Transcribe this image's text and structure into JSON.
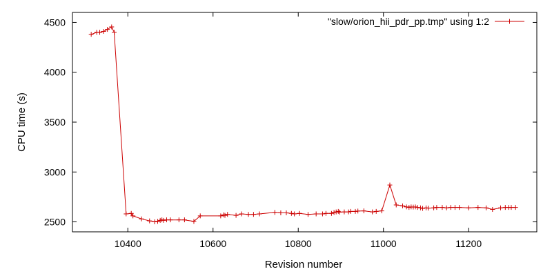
{
  "chart_data": {
    "type": "line",
    "xlabel": "Revision number",
    "ylabel": "CPU time (s)",
    "xlim": [
      10270,
      11360
    ],
    "ylim": [
      2400,
      4600
    ],
    "x_ticks": [
      10400,
      10600,
      10800,
      11000,
      11200
    ],
    "y_ticks": [
      2500,
      3000,
      3500,
      4000,
      4500
    ],
    "grid": false,
    "legend_position": "top-right",
    "series": [
      {
        "name": "\"slow/orion_hii_pdr_pp.tmp\" using 1:2",
        "color": "#cc0000",
        "marker": "plus",
        "points": [
          [
            10314,
            4380
          ],
          [
            10327,
            4400
          ],
          [
            10334,
            4400
          ],
          [
            10343,
            4410
          ],
          [
            10352,
            4430
          ],
          [
            10362,
            4455
          ],
          [
            10368,
            4400
          ],
          [
            10396,
            2580
          ],
          [
            10408,
            2585
          ],
          [
            10412,
            2560
          ],
          [
            10432,
            2530
          ],
          [
            10451,
            2510
          ],
          [
            10463,
            2500
          ],
          [
            10470,
            2505
          ],
          [
            10476,
            2515
          ],
          [
            10480,
            2520
          ],
          [
            10484,
            2515
          ],
          [
            10491,
            2520
          ],
          [
            10500,
            2520
          ],
          [
            10520,
            2520
          ],
          [
            10533,
            2520
          ],
          [
            10555,
            2505
          ],
          [
            10570,
            2560
          ],
          [
            10618,
            2560
          ],
          [
            10625,
            2570
          ],
          [
            10628,
            2565
          ],
          [
            10634,
            2575
          ],
          [
            10654,
            2565
          ],
          [
            10667,
            2580
          ],
          [
            10683,
            2575
          ],
          [
            10695,
            2575
          ],
          [
            10709,
            2580
          ],
          [
            10745,
            2595
          ],
          [
            10759,
            2590
          ],
          [
            10772,
            2590
          ],
          [
            10784,
            2585
          ],
          [
            10791,
            2580
          ],
          [
            10803,
            2585
          ],
          [
            10823,
            2575
          ],
          [
            10842,
            2580
          ],
          [
            10857,
            2580
          ],
          [
            10865,
            2585
          ],
          [
            10878,
            2585
          ],
          [
            10884,
            2595
          ],
          [
            10889,
            2600
          ],
          [
            10894,
            2605
          ],
          [
            10897,
            2598
          ],
          [
            10908,
            2600
          ],
          [
            10918,
            2600
          ],
          [
            10923,
            2605
          ],
          [
            10934,
            2605
          ],
          [
            10940,
            2608
          ],
          [
            10954,
            2610
          ],
          [
            10974,
            2600
          ],
          [
            10983,
            2605
          ],
          [
            10996,
            2610
          ],
          [
            11015,
            2870
          ],
          [
            11030,
            2670
          ],
          [
            11045,
            2660
          ],
          [
            11054,
            2650
          ],
          [
            11060,
            2645
          ],
          [
            11065,
            2650
          ],
          [
            11070,
            2648
          ],
          [
            11075,
            2650
          ],
          [
            11080,
            2645
          ],
          [
            11087,
            2640
          ],
          [
            11092,
            2635
          ],
          [
            11100,
            2640
          ],
          [
            11105,
            2638
          ],
          [
            11118,
            2640
          ],
          [
            11125,
            2645
          ],
          [
            11138,
            2645
          ],
          [
            11148,
            2640
          ],
          [
            11158,
            2645
          ],
          [
            11168,
            2645
          ],
          [
            11178,
            2645
          ],
          [
            11200,
            2640
          ],
          [
            11222,
            2645
          ],
          [
            11241,
            2640
          ],
          [
            11256,
            2625
          ],
          [
            11275,
            2640
          ],
          [
            11286,
            2645
          ],
          [
            11294,
            2645
          ],
          [
            11300,
            2645
          ],
          [
            11310,
            2645
          ]
        ]
      }
    ]
  }
}
